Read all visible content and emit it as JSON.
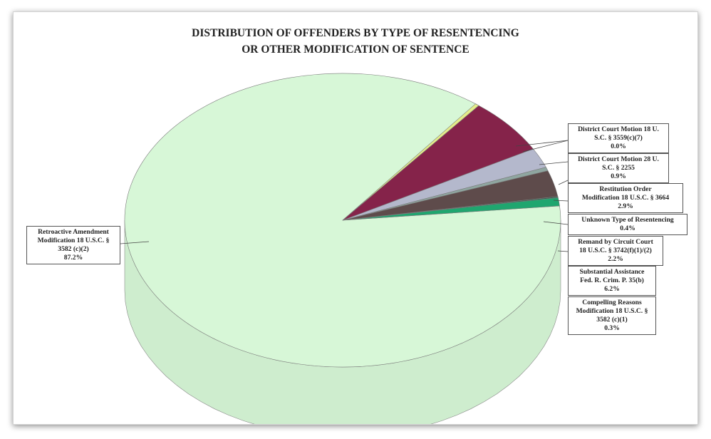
{
  "chart_data": {
    "type": "pie",
    "title_lines": [
      "DISTRIBUTION OF OFFENDERS BY TYPE OF RESENTENCING",
      "OR OTHER MODIFICATION OF SENTENCE"
    ],
    "slices": [
      {
        "label_lines": [
          "Retroactive Amendment",
          "Modification 18 U.S.C. §",
          "3582 (c)(2)"
        ],
        "pct_label": "87.2%",
        "value": 87.2,
        "color": "#d7f7d7"
      },
      {
        "label_lines": [
          "District Court Motion 18 U.",
          "S.C. § 3559(c)(7)"
        ],
        "pct_label": "0.0%",
        "value": 0.0,
        "color": "#2c5c4a"
      },
      {
        "label_lines": [
          "District Court Motion 28 U.",
          "S.C. § 2255"
        ],
        "pct_label": "0.9%",
        "value": 0.9,
        "color": "#1fa66f"
      },
      {
        "label_lines": [
          "Restitution Order",
          "Modification 18 U.S.C. § 3664"
        ],
        "pct_label": "2.9%",
        "value": 2.9,
        "color": "#5e4b4b"
      },
      {
        "label_lines": [
          "Unknown Type of Resentencing"
        ],
        "pct_label": "0.4%",
        "value": 0.4,
        "color": "#8fa6a0"
      },
      {
        "label_lines": [
          "Remand by Circuit Court",
          "18 U.S.C. § 3742(f)(1)/(2)"
        ],
        "pct_label": "2.2%",
        "value": 2.2,
        "color": "#b4b8cc"
      },
      {
        "label_lines": [
          "Substantial Assistance",
          "Fed. R. Crim. P. 35(b)"
        ],
        "pct_label": "6.2%",
        "value": 6.2,
        "color": "#85234a"
      },
      {
        "label_lines": [
          "Compelling Reasons",
          "Modification 18 U.S.C. §",
          "3582 (c)(1)"
        ],
        "pct_label": "0.3%",
        "value": 0.3,
        "color": "#e4ec8a"
      }
    ]
  }
}
